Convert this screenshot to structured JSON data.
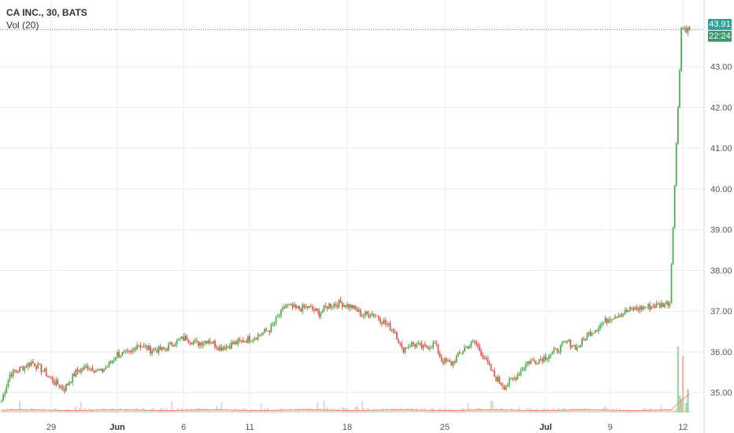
{
  "legend": {
    "symbol": "CA INC., 30, BATS",
    "volume": "Vol (20)"
  },
  "price_tag": "43.91",
  "time_tag": "22:24",
  "colors": {
    "up": "#26a69a",
    "down": "#ef5350",
    "up_wick": "#4caf50",
    "grid": "#e6eef1",
    "price_line": "#26a69a",
    "vol_ma": "#ff8a65"
  },
  "chart_data": {
    "type": "candlestick",
    "title": "CA INC., 30, BATS",
    "ylim": [
      34.55,
      44.25
    ],
    "y_ticks": [
      "35.00",
      "36.00",
      "37.00",
      "38.00",
      "39.00",
      "40.00",
      "41.00",
      "42.00",
      "43.00"
    ],
    "x_ticks": [
      {
        "label": "29",
        "bold": false,
        "index": 30
      },
      {
        "label": "Jun",
        "bold": true,
        "index": 70
      },
      {
        "label": "6",
        "bold": false,
        "index": 110
      },
      {
        "label": "11",
        "bold": false,
        "index": 150
      },
      {
        "label": "18",
        "bold": false,
        "index": 209
      },
      {
        "label": "25",
        "bold": false,
        "index": 268
      },
      {
        "label": "Jul",
        "bold": true,
        "index": 329
      },
      {
        "label": "9",
        "bold": false,
        "index": 368
      },
      {
        "label": "12",
        "bold": false,
        "index": 412
      }
    ],
    "last_price": 43.91,
    "waypoints": [
      [
        0,
        34.8
      ],
      [
        5,
        35.45
      ],
      [
        12,
        35.6
      ],
      [
        18,
        35.75
      ],
      [
        25,
        35.55
      ],
      [
        32,
        35.25
      ],
      [
        38,
        35.1
      ],
      [
        45,
        35.5
      ],
      [
        52,
        35.65
      ],
      [
        60,
        35.5
      ],
      [
        66,
        35.75
      ],
      [
        70,
        35.95
      ],
      [
        78,
        35.95
      ],
      [
        82,
        36.2
      ],
      [
        90,
        36.05
      ],
      [
        98,
        36.05
      ],
      [
        105,
        36.25
      ],
      [
        112,
        36.35
      ],
      [
        118,
        36.2
      ],
      [
        125,
        36.3
      ],
      [
        132,
        36.1
      ],
      [
        140,
        36.2
      ],
      [
        148,
        36.3
      ],
      [
        155,
        36.4
      ],
      [
        162,
        36.55
      ],
      [
        168,
        36.9
      ],
      [
        172,
        37.15
      ],
      [
        178,
        37.05
      ],
      [
        185,
        37.1
      ],
      [
        192,
        36.95
      ],
      [
        198,
        37.15
      ],
      [
        205,
        37.2
      ],
      [
        212,
        37.1
      ],
      [
        218,
        36.9
      ],
      [
        225,
        36.95
      ],
      [
        232,
        36.7
      ],
      [
        238,
        36.5
      ],
      [
        242,
        36.05
      ],
      [
        248,
        36.2
      ],
      [
        255,
        36.1
      ],
      [
        262,
        36.2
      ],
      [
        266,
        35.8
      ],
      [
        272,
        35.7
      ],
      [
        280,
        36.1
      ],
      [
        286,
        36.25
      ],
      [
        292,
        35.85
      ],
      [
        298,
        35.4
      ],
      [
        304,
        35.15
      ],
      [
        310,
        35.35
      ],
      [
        318,
        35.75
      ],
      [
        324,
        35.8
      ],
      [
        330,
        35.9
      ],
      [
        336,
        36.05
      ],
      [
        342,
        36.25
      ],
      [
        348,
        36.1
      ],
      [
        355,
        36.45
      ],
      [
        362,
        36.65
      ],
      [
        368,
        36.85
      ],
      [
        375,
        36.95
      ],
      [
        382,
        37.05
      ],
      [
        390,
        37.1
      ],
      [
        398,
        37.15
      ],
      [
        404,
        37.22
      ],
      [
        411,
        43.95
      ],
      [
        416,
        43.91
      ]
    ],
    "volume_spikes": [
      {
        "index": 409,
        "value": 70,
        "dir": "up"
      },
      {
        "index": 410,
        "value": 18,
        "dir": "up"
      },
      {
        "index": 411,
        "value": 15,
        "dir": "up"
      },
      {
        "index": 412,
        "value": 60,
        "dir": "down"
      },
      {
        "index": 414,
        "value": 10,
        "dir": "up"
      },
      {
        "index": 415,
        "value": 25,
        "dir": "up"
      }
    ]
  }
}
